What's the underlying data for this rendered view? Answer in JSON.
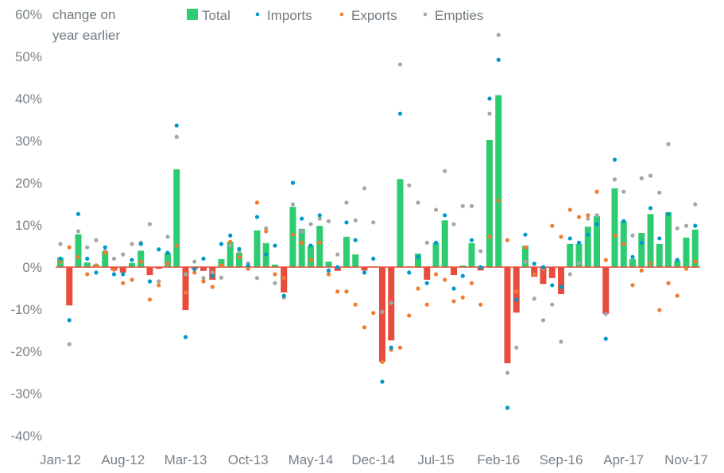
{
  "chart_data": {
    "type": "bar",
    "title": "",
    "ylabel_lines": [
      "change on",
      "year earlier"
    ],
    "xlabel": "",
    "ylim": [
      -40,
      60
    ],
    "yticks": [
      60,
      50,
      40,
      30,
      20,
      10,
      0,
      -10,
      -20,
      -30,
      -40
    ],
    "ytick_labels": [
      "60%",
      "50%",
      "40%",
      "30%",
      "20%",
      "10%",
      "0%",
      "-10%",
      "-20%",
      "-30%",
      "-40%"
    ],
    "xtick_labels": [
      "Jan-12",
      "Aug-12",
      "Mar-13",
      "Oct-13",
      "May-14",
      "Dec-14",
      "Jul-15",
      "Feb-16",
      "Sep-16",
      "Apr-17",
      "Nov-17"
    ],
    "xtick_every": 7,
    "grid": false,
    "legend_position": "top",
    "colors": {
      "total_positive": "#2ecc71",
      "total_negative": "#e74c3c",
      "imports": "#0099cc",
      "exports": "#ef7d32",
      "empties": "#a6a6a6",
      "axis_text": "#7a8288",
      "zero_line": "#e74c3c"
    },
    "legend": [
      {
        "name": "Total",
        "marker": "square",
        "color": "#2ecc71"
      },
      {
        "name": "Imports",
        "marker": "dot",
        "color": "#0099cc"
      },
      {
        "name": "Exports",
        "marker": "dot",
        "color": "#ef7d32"
      },
      {
        "name": "Empties",
        "marker": "dot",
        "color": "#a6a6a6"
      }
    ],
    "categories": [
      "Jan-12",
      "Feb-12",
      "Mar-12",
      "Apr-12",
      "May-12",
      "Jun-12",
      "Jul-12",
      "Aug-12",
      "Sep-12",
      "Oct-12",
      "Nov-12",
      "Dec-12",
      "Jan-13",
      "Feb-13",
      "Mar-13",
      "Apr-13",
      "May-13",
      "Jun-13",
      "Jul-13",
      "Aug-13",
      "Sep-13",
      "Oct-13",
      "Nov-13",
      "Dec-13",
      "Jan-14",
      "Feb-14",
      "Mar-14",
      "Apr-14",
      "May-14",
      "Jun-14",
      "Jul-14",
      "Aug-14",
      "Sep-14",
      "Oct-14",
      "Nov-14",
      "Dec-14",
      "Jan-15",
      "Feb-15",
      "Mar-15",
      "Apr-15",
      "May-15",
      "Jun-15",
      "Jul-15",
      "Aug-15",
      "Sep-15",
      "Oct-15",
      "Nov-15",
      "Dec-15",
      "Jan-16",
      "Feb-16",
      "Mar-16",
      "Apr-16",
      "May-16",
      "Jun-16",
      "Jul-16",
      "Aug-16",
      "Sep-16",
      "Oct-16",
      "Nov-16",
      "Dec-16",
      "Jan-17",
      "Feb-17",
      "Mar-17",
      "Apr-17",
      "May-17",
      "Jun-17",
      "Jul-17",
      "Aug-17",
      "Sep-17",
      "Oct-17",
      "Nov-17",
      "Dec-17"
    ],
    "series": [
      {
        "name": "Total",
        "kind": "bar",
        "values": [
          2.3,
          -9.1,
          7.8,
          1.1,
          0.6,
          3.8,
          -0.8,
          -1.3,
          1.0,
          3.9,
          -1.9,
          -0.4,
          3.4,
          23.2,
          -10.2,
          -0.5,
          -0.9,
          -3.0,
          1.9,
          6.0,
          3.4,
          0.2,
          8.7,
          5.7,
          0.6,
          -6.0,
          14.3,
          9.1,
          5.1,
          9.8,
          1.3,
          -0.9,
          7.2,
          3.0,
          -0.8,
          0.2,
          -22.5,
          -17.4,
          20.9,
          0.2,
          3.2,
          -3.0,
          5.8,
          11.1,
          -1.9,
          0.4,
          5.7,
          -0.8,
          30.2,
          40.8,
          -22.8,
          -10.8,
          5.1,
          -2.3,
          -4.0,
          -2.6,
          -6.4,
          5.5,
          5.5,
          9.6,
          12.1,
          -11.1,
          18.7,
          10.9,
          1.9,
          8.1,
          12.6,
          5.5,
          13.0,
          1.5,
          7.0,
          8.9
        ]
      },
      {
        "name": "Imports",
        "kind": "dot",
        "values": [
          2.0,
          -12.6,
          12.6,
          2.0,
          -1.3,
          4.7,
          -1.7,
          -1.7,
          1.7,
          5.5,
          -3.4,
          4.2,
          3.4,
          33.6,
          -16.6,
          -0.5,
          2.0,
          -2.1,
          5.5,
          7.5,
          4.3,
          0.4,
          11.9,
          3.0,
          5.1,
          -6.8,
          20.0,
          11.5,
          5.1,
          12.3,
          -0.8,
          0.0,
          10.6,
          6.4,
          -1.3,
          2.0,
          -27.2,
          -19.1,
          36.4,
          -1.3,
          2.4,
          -3.8,
          5.8,
          12.3,
          -5.1,
          -2.1,
          6.4,
          0.0,
          40.0,
          49.2,
          -33.4,
          -7.7,
          7.7,
          0.8,
          0.0,
          -4.3,
          -4.7,
          6.8,
          5.8,
          7.7,
          10.2,
          -17.0,
          25.5,
          10.9,
          2.4,
          5.8,
          14.0,
          6.8,
          12.6,
          1.7,
          null,
          9.8
        ]
      },
      {
        "name": "Exports",
        "kind": "dot",
        "values": [
          1.3,
          4.7,
          2.4,
          -1.7,
          0.4,
          3.4,
          -0.6,
          -3.8,
          -3.0,
          1.3,
          -7.7,
          -4.3,
          0.8,
          5.1,
          -6.0,
          -1.3,
          -3.4,
          -4.7,
          0.4,
          6.0,
          2.4,
          -0.4,
          15.3,
          8.5,
          -1.7,
          -2.6,
          7.7,
          5.8,
          1.7,
          5.8,
          -1.7,
          -5.8,
          -5.8,
          -8.9,
          -14.3,
          -10.9,
          -22.5,
          -19.6,
          -19.1,
          -11.5,
          -5.1,
          -8.9,
          -1.7,
          -3.0,
          -8.1,
          -7.2,
          -3.8,
          -8.9,
          7.2,
          15.8,
          6.4,
          -5.8,
          4.7,
          -1.7,
          -0.4,
          9.8,
          7.2,
          13.6,
          11.9,
          12.3,
          17.9,
          1.7,
          7.5,
          5.5,
          -4.3,
          -0.8,
          0.9,
          -10.2,
          -3.8,
          -6.8,
          -0.4,
          1.3
        ]
      },
      {
        "name": "Empties",
        "kind": "dot",
        "values": [
          5.5,
          -18.3,
          8.5,
          4.7,
          6.4,
          3.8,
          2.0,
          3.0,
          5.5,
          5.8,
          10.2,
          -3.4,
          7.2,
          30.9,
          -1.7,
          1.3,
          -2.6,
          -1.3,
          -2.5,
          5.1,
          3.8,
          0.9,
          -2.6,
          9.2,
          -3.8,
          -7.2,
          14.9,
          8.5,
          10.2,
          11.5,
          10.9,
          3.0,
          15.3,
          11.1,
          18.7,
          10.6,
          -10.6,
          -8.5,
          48.1,
          19.4,
          15.3,
          5.8,
          13.6,
          22.8,
          10.2,
          14.5,
          14.5,
          3.8,
          36.4,
          55.1,
          -25.1,
          -19.1,
          1.3,
          -7.5,
          -12.6,
          -8.9,
          -17.7,
          -1.7,
          0.9,
          11.5,
          12.3,
          -11.1,
          20.8,
          17.9,
          7.5,
          21.1,
          21.7,
          17.7,
          29.2,
          9.2,
          9.8,
          14.9
        ]
      }
    ]
  }
}
